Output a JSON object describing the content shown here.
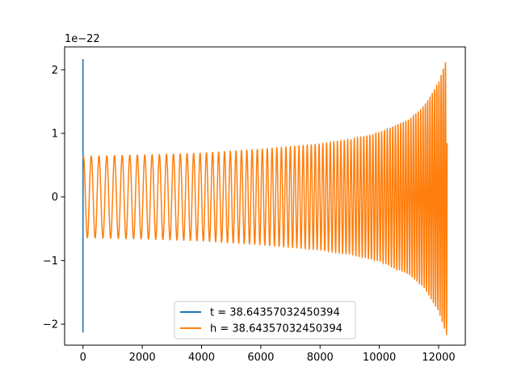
{
  "chart_data": {
    "type": "line",
    "title": "",
    "xlabel": "",
    "ylabel": "",
    "y_offset_label": "1e−22",
    "xlim": [
      -620,
      12900
    ],
    "ylim": [
      -2.33,
      2.36
    ],
    "x_ticks": [
      0,
      2000,
      4000,
      6000,
      8000,
      10000,
      12000
    ],
    "x_tick_labels": [
      "0",
      "2000",
      "4000",
      "6000",
      "8000",
      "10000",
      "12000"
    ],
    "y_ticks": [
      2,
      1,
      0,
      -1,
      -2
    ],
    "y_tick_labels": [
      "2",
      "1",
      "0",
      "−1",
      "−2"
    ],
    "grid": false,
    "legend_position": "lower center",
    "colors": {
      "t": "#1f77b4",
      "h": "#ff7f0e"
    },
    "series": [
      {
        "name": "t = 38.64357032450394",
        "kind": "vertical-spike",
        "x": 0,
        "ymin": -2.13,
        "ymax": 2.17
      },
      {
        "name": "h = 38.64357032450394",
        "kind": "chirp",
        "x_start": 0,
        "x_end": 12288,
        "start_value": 0.6,
        "amplitude_points": [
          {
            "x": 0,
            "amp": 0.64
          },
          {
            "x": 2000,
            "amp": 0.66
          },
          {
            "x": 4000,
            "amp": 0.69
          },
          {
            "x": 6000,
            "amp": 0.75
          },
          {
            "x": 8000,
            "amp": 0.83
          },
          {
            "x": 9000,
            "amp": 0.9
          },
          {
            "x": 10000,
            "amp": 1.01
          },
          {
            "x": 11000,
            "amp": 1.22
          },
          {
            "x": 11500,
            "amp": 1.42
          },
          {
            "x": 12000,
            "amp": 1.8
          },
          {
            "x": 12288,
            "amp": 2.2
          }
        ],
        "cycles_per_1000_start": 3.8,
        "cycles_per_1000_end": 14
      }
    ]
  }
}
